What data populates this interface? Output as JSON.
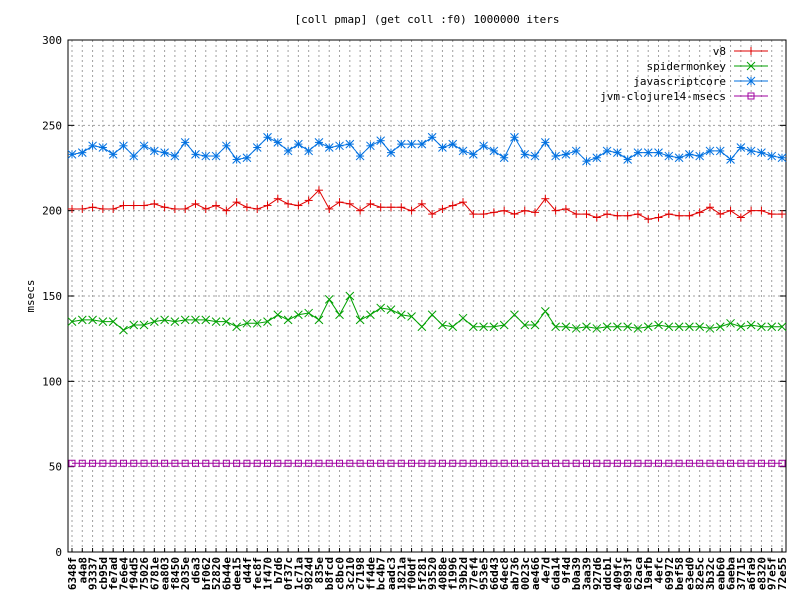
{
  "chart_data": {
    "type": "line",
    "title": "[coll pmap] (get coll :f0) 1000000 iters",
    "xlabel": "",
    "ylabel": "msecs",
    "ylim": [
      0,
      300
    ],
    "yticks": [
      0,
      50,
      100,
      150,
      200,
      250,
      300
    ],
    "grid": true,
    "legend_position": "top-right",
    "categories": [
      "6348f",
      "a4a8",
      "93337",
      "cb95d",
      "fe7ad",
      "7e6e4",
      "f94d5",
      "75026",
      "6781e",
      "ea803",
      "f8450",
      "2035e",
      "d6a3",
      "bf062",
      "52820",
      "6b44e",
      "dee15",
      "d44f",
      "fec8f",
      "1f470",
      "b7d6",
      "0f37c",
      "1c71a",
      "9824d",
      "835e",
      "b8fcd",
      "c8bc0",
      "3c210",
      "c7198",
      "ff4de",
      "bc4b7",
      "aadc3",
      "1821a",
      "f00df",
      "5f281",
      "93520",
      "4088e",
      "f1996",
      "39b2d",
      "77ef4",
      "953e5",
      "66d43",
      "64ec8",
      "ab736",
      "0023c",
      "ae466",
      "4e7d",
      "6da14",
      "9f4d",
      "b0a39",
      "3aa39",
      "927d6",
      "ddcb1",
      "409fc",
      "e893f",
      "62aca",
      "19afb",
      "4efc",
      "69972",
      "bef58",
      "e3ed0",
      "82e5c",
      "3b32c",
      "eab60",
      "6aeba",
      "37715",
      "a6fa9",
      "e8320",
      "97e5f",
      "72e55"
    ],
    "series": [
      {
        "name": "v8",
        "color": "#e00000",
        "marker": "plus",
        "values": [
          201,
          201,
          202,
          201,
          201,
          203,
          203,
          203,
          204,
          202,
          201,
          201,
          204,
          201,
          203,
          200,
          205,
          202,
          201,
          203,
          207,
          204,
          203,
          206,
          212,
          201,
          205,
          204,
          200,
          204,
          202,
          202,
          202,
          200,
          204,
          198,
          201,
          203,
          205,
          198,
          198,
          199,
          200,
          198,
          200,
          199,
          207,
          200,
          201,
          198,
          198,
          196,
          198,
          197,
          197,
          198,
          195,
          196,
          198,
          197,
          197,
          199,
          202,
          198,
          200,
          196,
          200,
          200,
          198,
          198
        ]
      },
      {
        "name": "spidermonkey",
        "color": "#00a000",
        "marker": "cross",
        "values": [
          135,
          136,
          136,
          135,
          135,
          130,
          133,
          133,
          135,
          136,
          135,
          136,
          136,
          136,
          135,
          135,
          132,
          134,
          134,
          135,
          139,
          136,
          139,
          140,
          136,
          148,
          139,
          150,
          136,
          139,
          143,
          142,
          139,
          138,
          132,
          139,
          133,
          132,
          137,
          132,
          132,
          132,
          133,
          139,
          133,
          133,
          141,
          132,
          132,
          131,
          132,
          131,
          132,
          132,
          132,
          131,
          132,
          133,
          132,
          132,
          132,
          132,
          131,
          132,
          134,
          132,
          133,
          132,
          132,
          132
        ]
      },
      {
        "name": "javascriptcore",
        "color": "#0070e0",
        "marker": "star",
        "values": [
          233,
          234,
          238,
          237,
          233,
          238,
          232,
          238,
          235,
          234,
          232,
          240,
          233,
          232,
          232,
          238,
          230,
          231,
          237,
          243,
          240,
          235,
          239,
          235,
          240,
          237,
          238,
          239,
          232,
          238,
          241,
          234,
          239,
          239,
          239,
          243,
          237,
          239,
          235,
          233,
          238,
          235,
          231,
          243,
          233,
          232,
          240,
          232,
          233,
          235,
          229,
          231,
          235,
          234,
          230,
          234,
          234,
          234,
          232,
          231,
          233,
          232,
          235,
          235,
          230,
          237,
          235,
          234,
          232,
          231
        ]
      },
      {
        "name": "jvm-clojure14-msecs",
        "color": "#a000a0",
        "marker": "square",
        "values": [
          52,
          52,
          52,
          52,
          52,
          52,
          52,
          52,
          52,
          52,
          52,
          52,
          52,
          52,
          52,
          52,
          52,
          52,
          52,
          52,
          52,
          52,
          52,
          52,
          52,
          52,
          52,
          52,
          52,
          52,
          52,
          52,
          52,
          52,
          52,
          52,
          52,
          52,
          52,
          52,
          52,
          52,
          52,
          52,
          52,
          52,
          52,
          52,
          52,
          52,
          52,
          52,
          52,
          52,
          52,
          52,
          52,
          52,
          52,
          52,
          52,
          52,
          52,
          52,
          52,
          52,
          52,
          52,
          52,
          52
        ]
      }
    ]
  }
}
